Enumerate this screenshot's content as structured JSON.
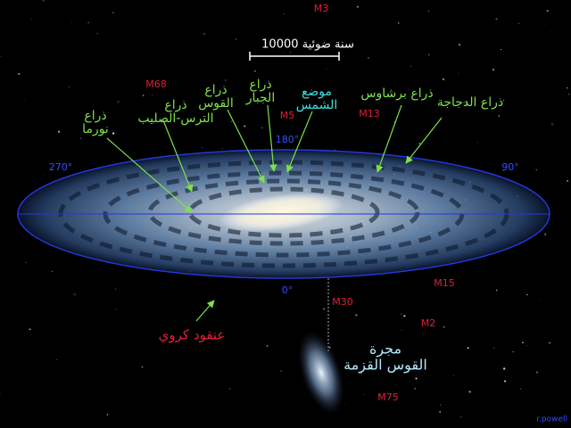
{
  "scale_bar": "10000 سنة ضوئية",
  "arms": [
    {
      "lines": [
        "ذراع",
        "نورما"
      ]
    },
    {
      "lines": [
        "ذراع",
        "الترس-الصليب"
      ]
    },
    {
      "lines": [
        "ذراع",
        "القوس"
      ]
    },
    {
      "lines": [
        "ذراع",
        "الجبار"
      ]
    },
    {
      "lines": [
        "موضع",
        "الشمس"
      ]
    },
    {
      "lines": [
        "ذراع برشاوس"
      ]
    },
    {
      "lines": [
        "ذراع الدجاجة"
      ]
    }
  ],
  "clusters": [
    "M3",
    "M68",
    "M5",
    "M13",
    "M30",
    "M15",
    "M2",
    "M75"
  ],
  "galactic_longitudes": [
    "180°",
    "270°",
    "90°",
    "0°"
  ],
  "globular_cluster": "عنقود كروي",
  "dwarf_galaxy": [
    "مجرة",
    "القوس القزمة"
  ],
  "credit": "r.powell"
}
